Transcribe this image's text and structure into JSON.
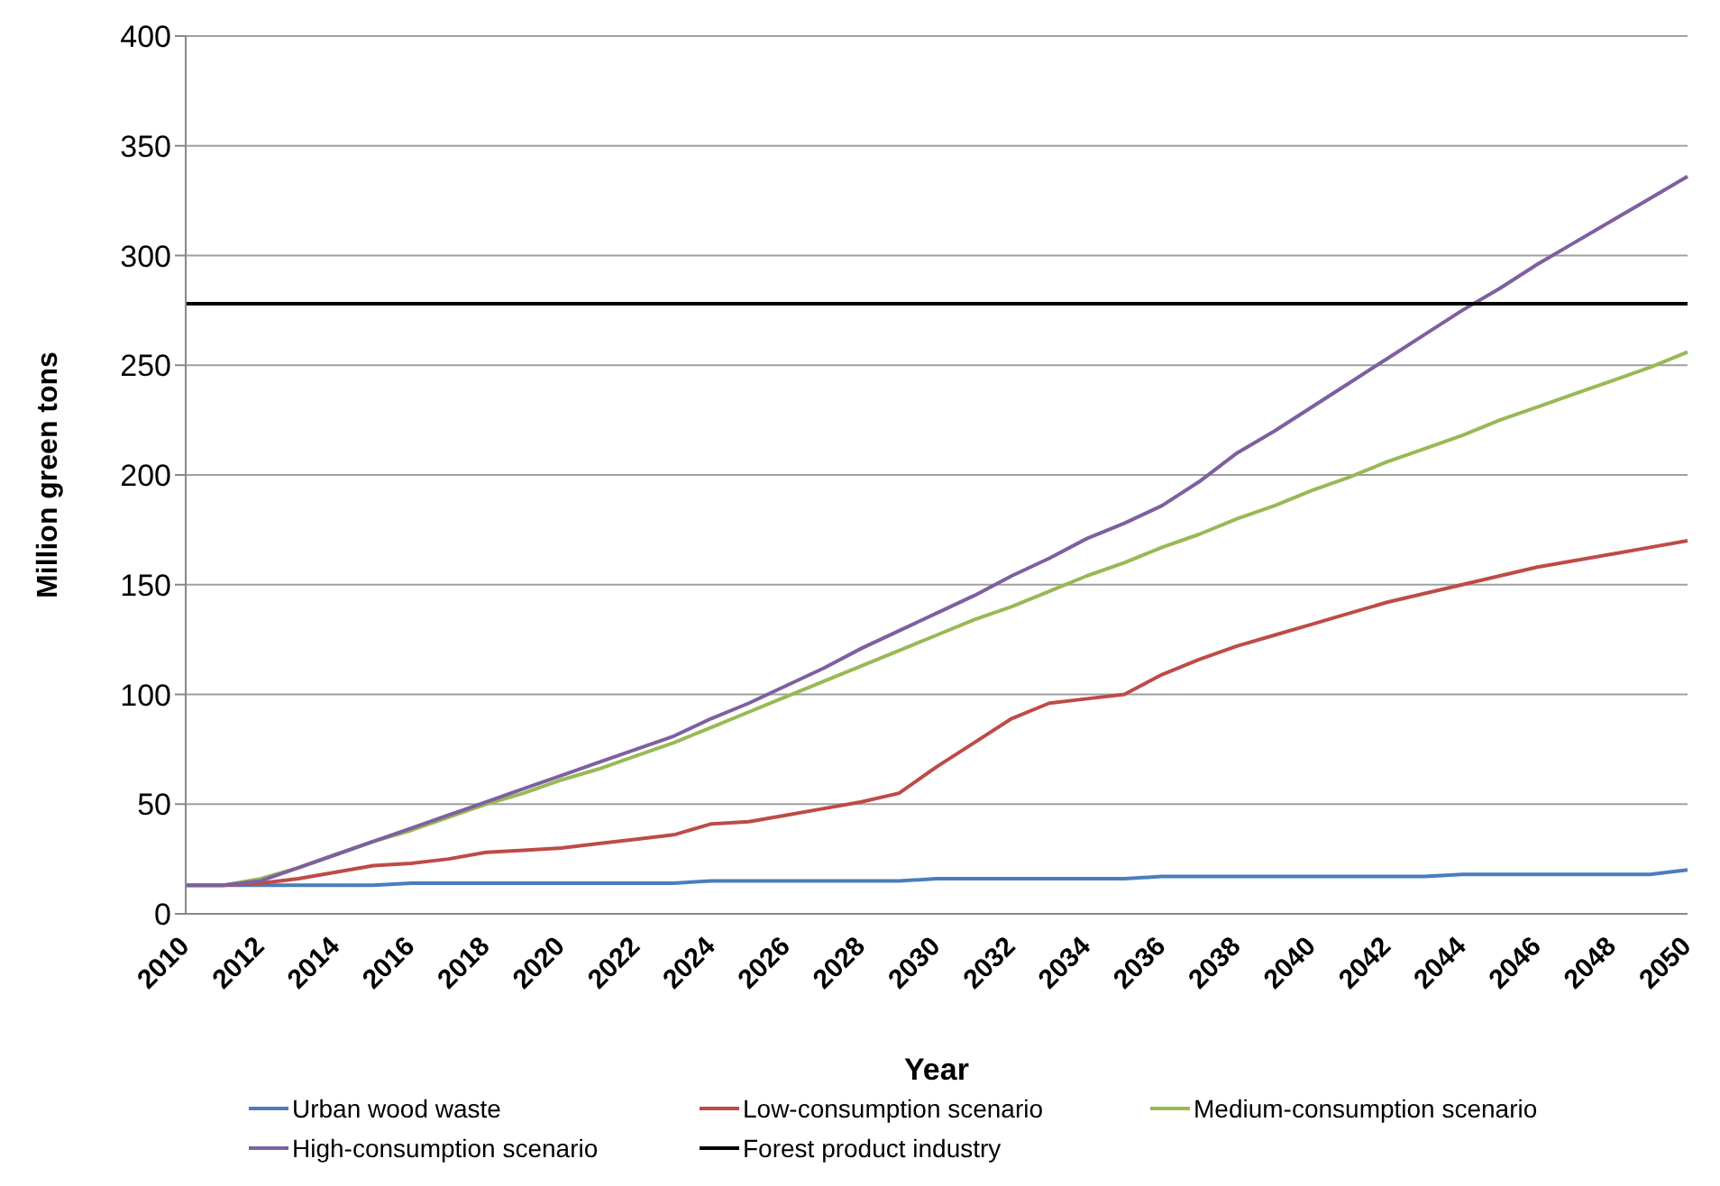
{
  "chart_data": {
    "type": "line",
    "xlabel": "Year",
    "ylabel": "Million green tons",
    "categories": [
      "2010",
      null,
      "2012",
      null,
      "2014",
      null,
      "2016",
      null,
      "2018",
      null,
      "2020",
      null,
      "2022",
      null,
      "2024",
      null,
      "2026",
      null,
      "2028",
      null,
      "2030",
      null,
      "2032",
      null,
      "2034",
      null,
      "2036",
      null,
      "2038",
      null,
      "2040",
      null,
      "2042",
      null,
      "2044",
      null,
      "2046",
      null,
      "2048",
      null,
      "2050"
    ],
    "series": [
      {
        "name": "Urban wood waste",
        "color": "#4a7ebb",
        "values": [
          13,
          13,
          13,
          13,
          13,
          13,
          14,
          14,
          14,
          14,
          14,
          14,
          14,
          14,
          15,
          15,
          15,
          15,
          15,
          15,
          16,
          16,
          16,
          16,
          16,
          16,
          17,
          17,
          17,
          17,
          17,
          17,
          17,
          17,
          18,
          18,
          18,
          18,
          18,
          18,
          20
        ]
      },
      {
        "name": "Low-consumption scenario",
        "color": "#be4b48",
        "values": [
          13,
          13,
          14,
          16,
          19,
          22,
          23,
          25,
          28,
          29,
          30,
          32,
          34,
          36,
          41,
          42,
          45,
          48,
          51,
          55,
          67,
          78,
          89,
          96,
          98,
          100,
          109,
          116,
          122,
          127,
          132,
          137,
          142,
          146,
          150,
          154,
          158,
          161,
          164,
          167,
          170
        ]
      },
      {
        "name": "Medium-consumption scenario",
        "color": "#98b954",
        "values": [
          13,
          13,
          16,
          21,
          27,
          33,
          38,
          44,
          50,
          55,
          61,
          66,
          72,
          78,
          85,
          92,
          99,
          106,
          113,
          120,
          127,
          134,
          140,
          147,
          154,
          160,
          167,
          173,
          180,
          186,
          193,
          199,
          206,
          212,
          218,
          225,
          231,
          237,
          243,
          249,
          256
        ]
      },
      {
        "name": "High-consumption scenario",
        "color": "#7d60a0",
        "values": [
          13,
          13,
          15,
          21,
          27,
          33,
          39,
          45,
          51,
          57,
          63,
          69,
          75,
          81,
          89,
          96,
          104,
          112,
          121,
          129,
          137,
          145,
          154,
          162,
          171,
          178,
          186,
          197,
          210,
          220,
          231,
          242,
          253,
          264,
          275,
          285,
          296,
          306,
          316,
          326,
          336
        ]
      },
      {
        "name": "Forest product industry",
        "color": "#000000",
        "values": [
          278,
          278,
          278,
          278,
          278,
          278,
          278,
          278,
          278,
          278,
          278,
          278,
          278,
          278,
          278,
          278,
          278,
          278,
          278,
          278,
          278,
          278,
          278,
          278,
          278,
          278,
          278,
          278,
          278,
          278,
          278,
          278,
          278,
          278,
          278,
          278,
          278,
          278,
          278,
          278,
          278
        ]
      }
    ],
    "ylim": [
      0,
      400
    ],
    "yticks": [
      0,
      50,
      100,
      150,
      200,
      250,
      300,
      350,
      400
    ],
    "grid": "y",
    "legend": "bottom",
    "marker": "none",
    "line_style": "solid"
  }
}
